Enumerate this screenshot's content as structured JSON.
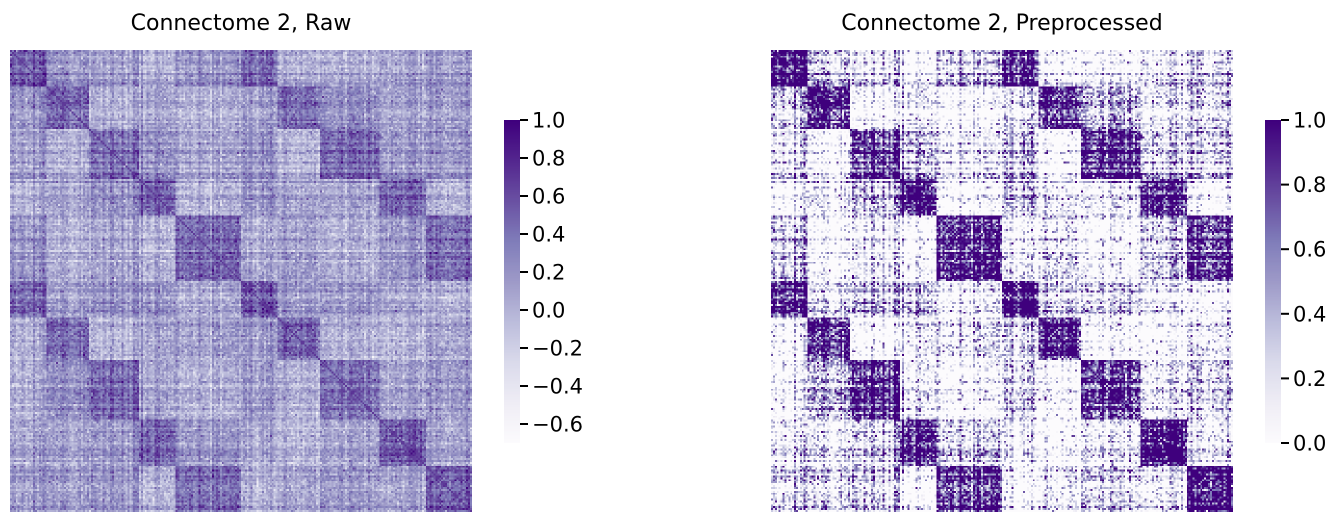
{
  "chart_data": [
    {
      "type": "heatmap",
      "title": "Connectome 2, Raw",
      "matrix_size": 240,
      "seed": 17,
      "block_boundaries": [
        0.08,
        0.17,
        0.28,
        0.36,
        0.5,
        0.58,
        0.67,
        0.8,
        0.9,
        1.0
      ],
      "block_modules": [
        0,
        1,
        2,
        3,
        4,
        0,
        1,
        2,
        3,
        4
      ],
      "noise_std": 0.17,
      "value_range": [
        -0.7,
        1.0
      ],
      "colorbar": {
        "range": [
          -0.7,
          1.0
        ],
        "ticks": [
          1.0,
          0.8,
          0.6,
          0.4,
          0.2,
          0.0,
          -0.2,
          -0.4,
          -0.6
        ],
        "tick_labels": [
          "1.0",
          "0.8",
          "0.6",
          "0.4",
          "0.2",
          "0.0",
          "−0.2",
          "−0.4",
          "−0.6"
        ]
      },
      "colormap": [
        "#fcfbfd",
        "#efedf5",
        "#dadaeb",
        "#bcbddc",
        "#9e9ac8",
        "#807dba",
        "#6a51a3",
        "#54278f",
        "#3f007d"
      ],
      "axes_visible": false
    },
    {
      "type": "heatmap",
      "title": "Connectome 2, Preprocessed",
      "matrix_size": 240,
      "seed": 17,
      "block_boundaries": [
        0.08,
        0.17,
        0.28,
        0.36,
        0.5,
        0.58,
        0.67,
        0.8,
        0.9,
        1.0
      ],
      "block_modules": [
        0,
        1,
        2,
        3,
        4,
        0,
        1,
        2,
        3,
        4
      ],
      "noise_std": 0.17,
      "value_range": [
        0.0,
        1.0
      ],
      "colorbar": {
        "range": [
          0.0,
          1.0
        ],
        "ticks": [
          1.0,
          0.8,
          0.6,
          0.4,
          0.2,
          0.0
        ],
        "tick_labels": [
          "1.0",
          "0.8",
          "0.6",
          "0.4",
          "0.2",
          "0.0"
        ]
      },
      "colormap": [
        "#fcfbfd",
        "#efedf5",
        "#dadaeb",
        "#bcbddc",
        "#9e9ac8",
        "#807dba",
        "#6a51a3",
        "#54278f",
        "#3f007d"
      ],
      "axes_visible": false
    }
  ]
}
